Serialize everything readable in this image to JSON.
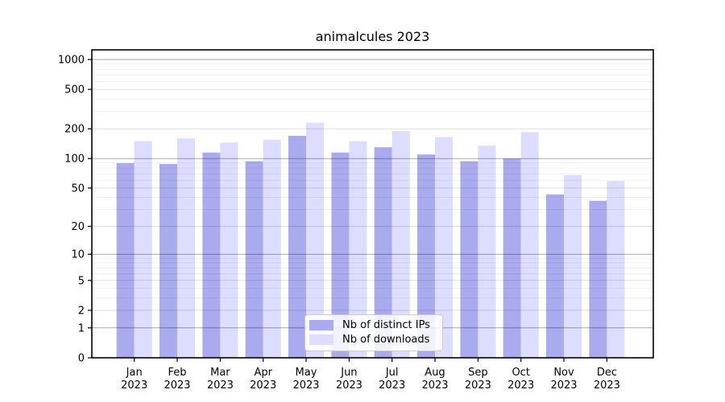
{
  "title": "animalcules 2023",
  "chart_data": {
    "type": "bar",
    "title": "animalcules 2023",
    "xlabel": "",
    "ylabel": "",
    "categories": [
      "Jan 2023",
      "Feb 2023",
      "Mar 2023",
      "Apr 2023",
      "May 2023",
      "Jun 2023",
      "Jul 2023",
      "Aug 2023",
      "Sep 2023",
      "Oct 2023",
      "Nov 2023",
      "Dec 2023"
    ],
    "series": [
      {
        "name": "Nb of distinct IPs",
        "color": "#aaaaee",
        "values": [
          90,
          88,
          115,
          94,
          170,
          115,
          130,
          110,
          94,
          100,
          43,
          37
        ]
      },
      {
        "name": "Nb of downloads",
        "color": "#ddddff",
        "values": [
          150,
          160,
          145,
          155,
          230,
          150,
          190,
          165,
          135,
          185,
          68,
          59
        ]
      }
    ],
    "yscale": "log1p",
    "yticks": [
      0,
      1,
      2,
      5,
      10,
      20,
      50,
      100,
      200,
      500,
      1000
    ],
    "ylim": [
      0,
      1230
    ],
    "grid": true,
    "legend_position": "lower-center-inside"
  },
  "colors": {
    "axis": "#000000",
    "grid_major": "rgba(0,0,0,0.34)",
    "grid_labeled": "rgba(0,0,0,0.13)",
    "grid_minor": "rgba(0,0,0,0.06)",
    "background": "#ffffff"
  }
}
